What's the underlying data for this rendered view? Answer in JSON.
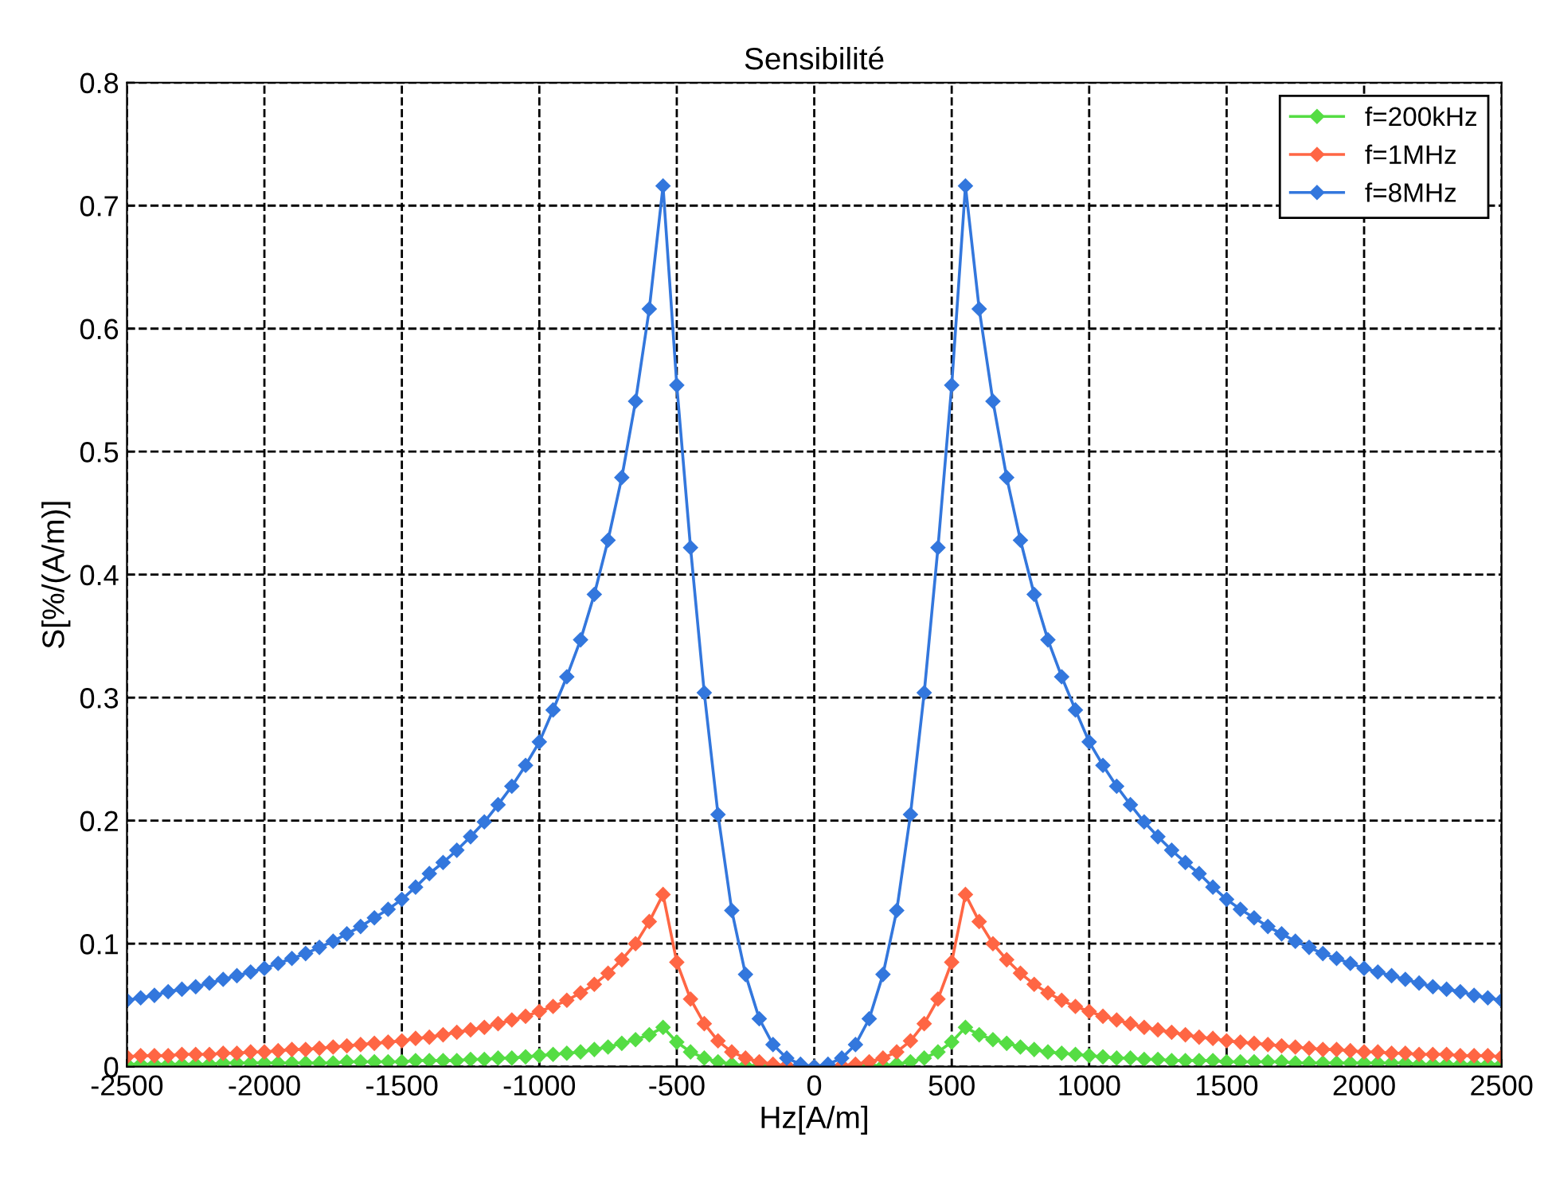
{
  "chart_data": {
    "type": "line",
    "title": "Sensibilité",
    "xlabel": "Hz[A/m]",
    "ylabel": "S[%/(A/m)]",
    "x": [
      -2500,
      -2450,
      -2400,
      -2350,
      -2300,
      -2250,
      -2200,
      -2150,
      -2100,
      -2050,
      -2000,
      -1950,
      -1900,
      -1850,
      -1800,
      -1750,
      -1700,
      -1650,
      -1600,
      -1550,
      -1500,
      -1450,
      -1400,
      -1350,
      -1300,
      -1250,
      -1200,
      -1150,
      -1100,
      -1050,
      -1000,
      -950,
      -900,
      -850,
      -800,
      -750,
      -700,
      -650,
      -600,
      -550,
      -500,
      -450,
      -400,
      -350,
      -300,
      -250,
      -200,
      -150,
      -100,
      -50,
      0,
      50,
      100,
      150,
      200,
      250,
      300,
      350,
      400,
      450,
      500,
      550,
      600,
      650,
      700,
      750,
      800,
      850,
      900,
      950,
      1000,
      1050,
      1100,
      1150,
      1200,
      1250,
      1300,
      1350,
      1400,
      1450,
      1500,
      1550,
      1600,
      1650,
      1700,
      1750,
      1800,
      1850,
      1900,
      1950,
      2000,
      2050,
      2100,
      2150,
      2200,
      2250,
      2300,
      2350,
      2400,
      2450,
      2500
    ],
    "series": [
      {
        "name": "f=200kHz",
        "color": "#55dd44",
        "values": [
          0.002,
          0.002,
          0.002,
          0.002,
          0.002,
          0.002,
          0.002,
          0.003,
          0.003,
          0.003,
          0.003,
          0.003,
          0.003,
          0.003,
          0.003,
          0.003,
          0.004,
          0.004,
          0.004,
          0.004,
          0.004,
          0.005,
          0.005,
          0.005,
          0.005,
          0.006,
          0.006,
          0.007,
          0.007,
          0.008,
          0.009,
          0.01,
          0.011,
          0.012,
          0.014,
          0.016,
          0.019,
          0.022,
          0.026,
          0.032,
          0.02,
          0.012,
          0.007,
          0.004,
          0.002,
          0.001,
          0.001,
          0,
          0,
          0,
          0,
          0,
          0,
          0,
          0.001,
          0.001,
          0.002,
          0.004,
          0.007,
          0.012,
          0.02,
          0.032,
          0.026,
          0.022,
          0.019,
          0.016,
          0.014,
          0.012,
          0.011,
          0.01,
          0.009,
          0.008,
          0.007,
          0.007,
          0.006,
          0.006,
          0.005,
          0.005,
          0.005,
          0.005,
          0.004,
          0.004,
          0.004,
          0.004,
          0.004,
          0.003,
          0.003,
          0.003,
          0.003,
          0.003,
          0.003,
          0.003,
          0.003,
          0.003,
          0.002,
          0.002,
          0.002,
          0.002,
          0.002,
          0.002,
          0.002
        ]
      },
      {
        "name": "f=1MHz",
        "color": "#ff6644",
        "values": [
          0.008,
          0.009,
          0.009,
          0.009,
          0.01,
          0.01,
          0.01,
          0.011,
          0.011,
          0.012,
          0.012,
          0.013,
          0.014,
          0.014,
          0.015,
          0.016,
          0.017,
          0.018,
          0.019,
          0.02,
          0.021,
          0.023,
          0.024,
          0.026,
          0.028,
          0.03,
          0.032,
          0.035,
          0.038,
          0.041,
          0.045,
          0.049,
          0.054,
          0.06,
          0.067,
          0.076,
          0.087,
          0.1,
          0.118,
          0.14,
          0.085,
          0.055,
          0.035,
          0.021,
          0.012,
          0.007,
          0.004,
          0.002,
          0.001,
          0,
          0,
          0,
          0.001,
          0.002,
          0.004,
          0.007,
          0.012,
          0.021,
          0.035,
          0.055,
          0.085,
          0.14,
          0.118,
          0.1,
          0.087,
          0.076,
          0.067,
          0.06,
          0.054,
          0.049,
          0.045,
          0.041,
          0.038,
          0.035,
          0.032,
          0.03,
          0.028,
          0.026,
          0.024,
          0.023,
          0.021,
          0.02,
          0.019,
          0.018,
          0.017,
          0.016,
          0.015,
          0.014,
          0.014,
          0.013,
          0.012,
          0.012,
          0.011,
          0.011,
          0.01,
          0.01,
          0.01,
          0.009,
          0.009,
          0.009,
          0.008
        ]
      },
      {
        "name": "f=8MHz",
        "color": "#3377dd",
        "values": [
          0.054,
          0.056,
          0.058,
          0.061,
          0.063,
          0.065,
          0.068,
          0.071,
          0.074,
          0.077,
          0.08,
          0.084,
          0.088,
          0.092,
          0.097,
          0.102,
          0.108,
          0.114,
          0.121,
          0.128,
          0.136,
          0.146,
          0.157,
          0.166,
          0.176,
          0.187,
          0.199,
          0.213,
          0.228,
          0.245,
          0.264,
          0.29,
          0.317,
          0.347,
          0.384,
          0.428,
          0.479,
          0.541,
          0.616,
          0.716,
          0.554,
          0.422,
          0.304,
          0.205,
          0.127,
          0.075,
          0.039,
          0.018,
          0.007,
          0.002,
          0,
          0.002,
          0.007,
          0.018,
          0.039,
          0.075,
          0.127,
          0.205,
          0.304,
          0.422,
          0.554,
          0.716,
          0.616,
          0.541,
          0.479,
          0.428,
          0.384,
          0.347,
          0.317,
          0.29,
          0.264,
          0.245,
          0.228,
          0.213,
          0.199,
          0.187,
          0.176,
          0.166,
          0.157,
          0.146,
          0.136,
          0.128,
          0.121,
          0.114,
          0.108,
          0.102,
          0.097,
          0.092,
          0.088,
          0.084,
          0.08,
          0.077,
          0.074,
          0.071,
          0.068,
          0.065,
          0.063,
          0.061,
          0.058,
          0.056,
          0.054
        ]
      }
    ],
    "xlim": [
      -2500,
      2500
    ],
    "xticks": [
      -2500,
      -2000,
      -1500,
      -1000,
      -500,
      0,
      500,
      1000,
      1500,
      2000,
      2500
    ],
    "ylim": [
      0,
      0.8
    ],
    "yticks": [
      0,
      0.1,
      0.2,
      0.3,
      0.4,
      0.5,
      0.6,
      0.7,
      0.8
    ],
    "grid": true,
    "legend": "top right",
    "marker": "diamond",
    "line_style": "solid"
  }
}
